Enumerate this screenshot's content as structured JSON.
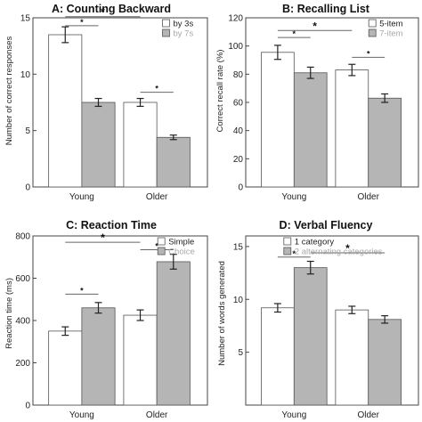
{
  "colors": {
    "white_bar": "#ffffff",
    "gray_bar": "#b5b5b5",
    "gray_text": "#a8a8a8",
    "axis": "#444444",
    "sig_line": "#666666"
  },
  "chart_data": [
    {
      "type": "bar",
      "title": "A: Counting Backward",
      "ylabel": "Number of correct responses",
      "categories": [
        "Young",
        "Older"
      ],
      "ylim": [
        0,
        15
      ],
      "yticks": [
        0,
        5,
        10,
        15
      ],
      "series": [
        {
          "name": "by 3s",
          "values": [
            13.5,
            7.5
          ],
          "errors": [
            0.7,
            0.35
          ],
          "color": "#ffffff"
        },
        {
          "name": "by 7s",
          "values": [
            7.5,
            4.4
          ],
          "errors": [
            0.35,
            0.2
          ],
          "color": "#b5b5b5"
        }
      ],
      "legend": "top-right",
      "significance": [
        {
          "from": [
            0,
            0
          ],
          "to": [
            0,
            1
          ],
          "label": "*",
          "level": 14.3,
          "size": "small"
        },
        {
          "from": [
            0,
            0
          ],
          "to": [
            1,
            0
          ],
          "label": "*",
          "level": 15.1,
          "size": "large"
        },
        {
          "from": [
            1,
            0
          ],
          "to": [
            1,
            1
          ],
          "label": "*",
          "level": 8.4,
          "size": "small"
        }
      ]
    },
    {
      "type": "bar",
      "title": "B: Recalling List",
      "ylabel": "Correct recall rate (%)",
      "categories": [
        "Young",
        "Older"
      ],
      "ylim": [
        0,
        120
      ],
      "yticks": [
        0,
        20,
        40,
        60,
        80,
        100,
        120
      ],
      "series": [
        {
          "name": "5-item",
          "values": [
            95.5,
            83
          ],
          "errors": [
            5,
            4
          ],
          "color": "#ffffff"
        },
        {
          "name": "7-item",
          "values": [
            81,
            63
          ],
          "errors": [
            4,
            3
          ],
          "color": "#b5b5b5"
        }
      ],
      "legend": "top-right",
      "significance": [
        {
          "from": [
            0,
            0
          ],
          "to": [
            0,
            1
          ],
          "label": "*",
          "level": 106,
          "size": "small"
        },
        {
          "from": [
            0,
            0
          ],
          "to": [
            1,
            0
          ],
          "label": "*",
          "level": 111,
          "size": "large"
        },
        {
          "from": [
            1,
            0
          ],
          "to": [
            1,
            1
          ],
          "label": "*",
          "level": 92,
          "size": "small"
        }
      ]
    },
    {
      "type": "bar",
      "title": "C: Reaction Time",
      "ylabel": "Reaction time (ms)",
      "categories": [
        "Young",
        "Older"
      ],
      "ylim": [
        0,
        800
      ],
      "yticks": [
        0,
        200,
        400,
        600,
        800
      ],
      "series": [
        {
          "name": "Simple",
          "values": [
            350,
            425
          ],
          "errors": [
            20,
            25
          ],
          "color": "#ffffff"
        },
        {
          "name": "Choice",
          "values": [
            460,
            678
          ],
          "errors": [
            25,
            35
          ],
          "color": "#b5b5b5"
        }
      ],
      "legend": "top-right",
      "significance": [
        {
          "from": [
            0,
            0
          ],
          "to": [
            0,
            1
          ],
          "label": "*",
          "level": 525,
          "size": "small"
        },
        {
          "from": [
            0,
            0
          ],
          "to": [
            1,
            0
          ],
          "label": "*",
          "level": 770,
          "size": "large"
        },
        {
          "from": [
            1,
            0
          ],
          "to": [
            1,
            1
          ],
          "label": "*",
          "level": 735,
          "size": "small"
        }
      ]
    },
    {
      "type": "bar",
      "title": "D: Verbal Fluency",
      "ylabel": "Number of words generated",
      "categories": [
        "Young",
        "Older"
      ],
      "ylim": [
        0,
        16
      ],
      "yticks": [
        5,
        10,
        15
      ],
      "series": [
        {
          "name": "1 category",
          "values": [
            9.2,
            9.0
          ],
          "errors": [
            0.4,
            0.35
          ],
          "color": "#ffffff"
        },
        {
          "name": "2 alternating categories",
          "values": [
            13.0,
            8.1
          ],
          "errors": [
            0.6,
            0.35
          ],
          "color": "#b5b5b5"
        }
      ],
      "legend": "top-right",
      "significance": [
        {
          "from": [
            0,
            0
          ],
          "to": [
            0,
            1
          ],
          "label": "*",
          "level": 14.0,
          "size": "small"
        },
        {
          "from": [
            0,
            1
          ],
          "to": [
            1,
            1
          ],
          "label": "*",
          "level": 14.4,
          "size": "large"
        }
      ]
    }
  ]
}
